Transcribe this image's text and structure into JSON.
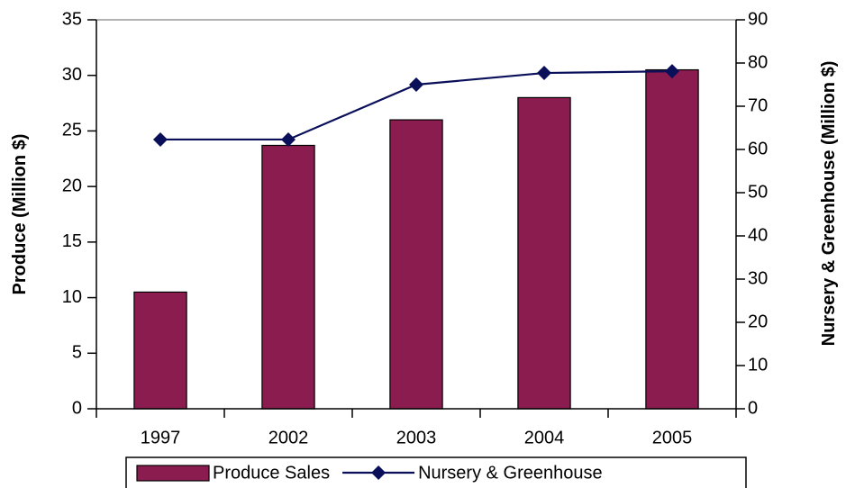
{
  "chart_data": {
    "type": "bar",
    "categories": [
      "1997",
      "2002",
      "2003",
      "2004",
      "2005"
    ],
    "series": [
      {
        "name": "Produce Sales",
        "type": "bar",
        "color": "#8b1c50",
        "values": [
          10.5,
          23.7,
          26.0,
          28.0,
          30.5
        ]
      },
      {
        "name": "Nursery & Greenhouse",
        "type": "line",
        "axis": "y2",
        "color": "#0a0f5a",
        "values": [
          62.3,
          62.3,
          75.0,
          77.7,
          78.1
        ]
      }
    ],
    "y_label": "Produce (Million $)",
    "y2_label": "Nursery & Greenhouse (Million $)",
    "ylim": [
      0,
      35
    ],
    "yticks": [
      0,
      5,
      10,
      15,
      20,
      25,
      30,
      35
    ],
    "y2lim": [
      0,
      90
    ],
    "y2ticks": [
      0,
      10,
      20,
      30,
      40,
      50,
      60,
      70,
      80,
      90
    ],
    "legend": "bottom"
  }
}
